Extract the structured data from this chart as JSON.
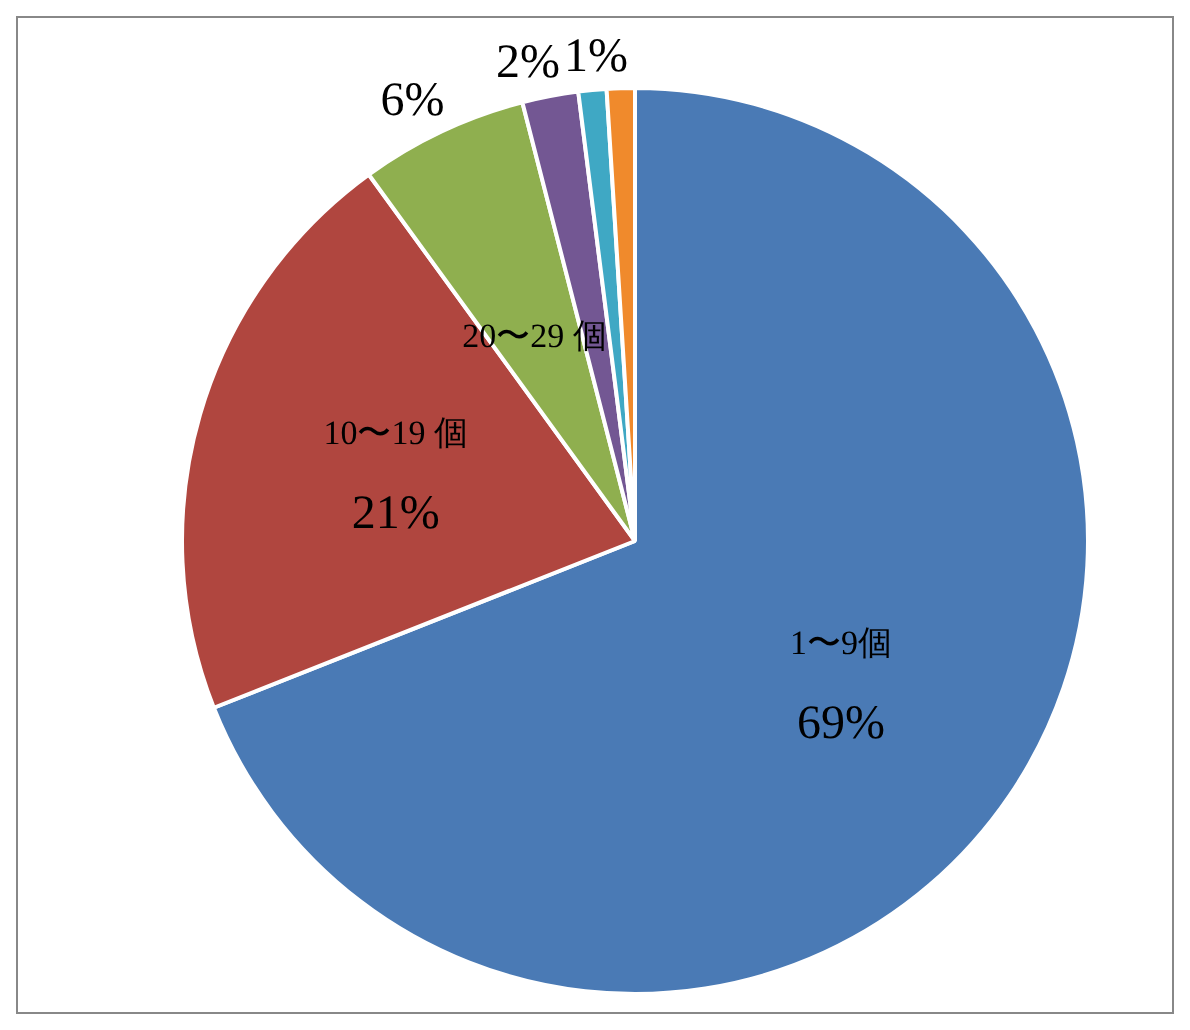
{
  "chart_data": {
    "type": "pie",
    "categories": [
      "1〜9個",
      "10〜19 個",
      "20〜29 個",
      null,
      null,
      null
    ],
    "values": [
      69,
      21,
      6,
      2,
      1,
      1
    ],
    "value_labels": [
      "69%",
      "21%",
      "6%",
      "2%",
      "1%",
      null
    ],
    "colors": [
      "#4a7ab5",
      "#b0463f",
      "#8faf4f",
      "#735793",
      "#3fa8c4",
      "#f08a2c"
    ],
    "legend": false
  }
}
